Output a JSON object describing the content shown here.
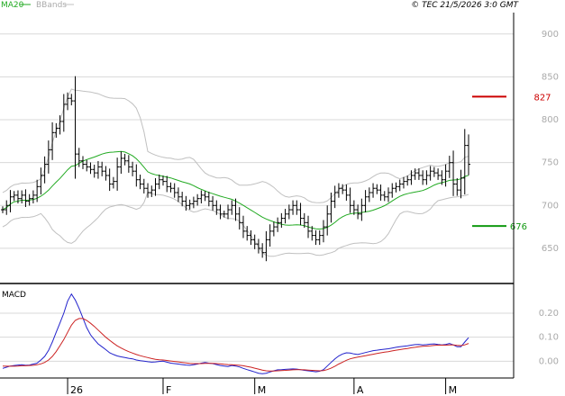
{
  "header": {
    "legend_ma": "MA20",
    "legend_bb": "BBands",
    "copyright": "© TEC 21/5/2026 3:0 GMT"
  },
  "colors": {
    "ma": "#22aa22",
    "bb": "#c0c0c0",
    "candle": "#000000",
    "macd": "#2222cc",
    "signal": "#cc2222",
    "resistance": "#cc0000",
    "support": "#119911",
    "grid": "#d8d8d8",
    "axis_text": "#aaaaaa"
  },
  "chart_data": [
    {
      "type": "candlestick",
      "panel": "price",
      "ylim": [
        610,
        925
      ],
      "yticks": [
        650,
        700,
        750,
        800,
        850,
        900
      ],
      "xticks": [
        {
          "label": "26",
          "index": 17
        },
        {
          "label": "F",
          "index": 42
        },
        {
          "label": "M",
          "index": 66
        },
        {
          "label": "A",
          "index": 92
        },
        {
          "label": "M",
          "index": 116
        }
      ],
      "levels": [
        {
          "name": "resistance",
          "value": 827,
          "label": "827"
        },
        {
          "name": "support",
          "value": 676,
          "label": "676"
        }
      ],
      "close": [
        695,
        700,
        710,
        712,
        708,
        712,
        705,
        708,
        712,
        722,
        735,
        748,
        765,
        785,
        790,
        798,
        818,
        825,
        822,
        760,
        752,
        748,
        745,
        742,
        738,
        745,
        740,
        735,
        725,
        728,
        745,
        755,
        752,
        745,
        740,
        730,
        725,
        720,
        715,
        718,
        725,
        730,
        728,
        722,
        720,
        715,
        710,
        705,
        700,
        702,
        705,
        708,
        712,
        710,
        705,
        700,
        695,
        690,
        690,
        695,
        700,
        690,
        680,
        670,
        665,
        660,
        655,
        650,
        645,
        660,
        670,
        675,
        680,
        685,
        690,
        695,
        700,
        695,
        685,
        680,
        670,
        665,
        660,
        665,
        675,
        690,
        705,
        715,
        720,
        718,
        712,
        700,
        695,
        690,
        700,
        710,
        715,
        720,
        718,
        712,
        710,
        715,
        720,
        722,
        725,
        728,
        730,
        735,
        738,
        735,
        730,
        735,
        740,
        738,
        735,
        730,
        740,
        750,
        725,
        718,
        732,
        770,
        748
      ]
    },
    {
      "type": "line",
      "panel": "macd",
      "ylim": [
        -0.07,
        0.32
      ],
      "yticks": [
        0.0,
        0.1,
        0.2
      ],
      "ytick_labels": [
        "0.00",
        "0.10",
        "0.20"
      ],
      "series": [
        {
          "name": "MACD",
          "values": [
            -0.03,
            -0.025,
            -0.02,
            -0.018,
            -0.016,
            -0.015,
            -0.017,
            -0.016,
            -0.012,
            -0.008,
            0.005,
            0.02,
            0.045,
            0.08,
            0.12,
            0.16,
            0.2,
            0.25,
            0.28,
            0.255,
            0.22,
            0.18,
            0.14,
            0.11,
            0.09,
            0.072,
            0.06,
            0.048,
            0.035,
            0.028,
            0.022,
            0.018,
            0.015,
            0.012,
            0.01,
            0.005,
            0.002,
            0.0,
            -0.002,
            -0.004,
            -0.003,
            -0.001,
            0.0,
            -0.004,
            -0.008,
            -0.01,
            -0.012,
            -0.014,
            -0.016,
            -0.017,
            -0.015,
            -0.012,
            -0.008,
            -0.005,
            -0.008,
            -0.01,
            -0.014,
            -0.018,
            -0.02,
            -0.022,
            -0.018,
            -0.02,
            -0.024,
            -0.03,
            -0.035,
            -0.04,
            -0.045,
            -0.05,
            -0.052,
            -0.05,
            -0.045,
            -0.04,
            -0.036,
            -0.035,
            -0.034,
            -0.033,
            -0.032,
            -0.033,
            -0.035,
            -0.038,
            -0.04,
            -0.042,
            -0.044,
            -0.042,
            -0.035,
            -0.02,
            -0.005,
            0.01,
            0.022,
            0.03,
            0.035,
            0.034,
            0.03,
            0.028,
            0.032,
            0.036,
            0.04,
            0.044,
            0.046,
            0.048,
            0.05,
            0.052,
            0.055,
            0.058,
            0.06,
            0.062,
            0.064,
            0.067,
            0.069,
            0.07,
            0.068,
            0.069,
            0.071,
            0.072,
            0.07,
            0.068,
            0.07,
            0.074,
            0.068,
            0.06,
            0.06,
            0.08,
            0.098
          ]
        },
        {
          "name": "Signal",
          "values": [
            -0.02,
            -0.021,
            -0.021,
            -0.021,
            -0.02,
            -0.019,
            -0.019,
            -0.018,
            -0.017,
            -0.015,
            -0.011,
            -0.005,
            0.005,
            0.02,
            0.04,
            0.065,
            0.09,
            0.12,
            0.15,
            0.17,
            0.178,
            0.178,
            0.17,
            0.158,
            0.145,
            0.13,
            0.115,
            0.1,
            0.087,
            0.075,
            0.064,
            0.055,
            0.047,
            0.04,
            0.034,
            0.028,
            0.023,
            0.019,
            0.015,
            0.011,
            0.008,
            0.006,
            0.005,
            0.003,
            0.001,
            -0.001,
            -0.003,
            -0.005,
            -0.007,
            -0.009,
            -0.01,
            -0.01,
            -0.01,
            -0.009,
            -0.009,
            -0.009,
            -0.01,
            -0.011,
            -0.013,
            -0.014,
            -0.015,
            -0.016,
            -0.017,
            -0.019,
            -0.022,
            -0.025,
            -0.029,
            -0.033,
            -0.037,
            -0.04,
            -0.041,
            -0.041,
            -0.04,
            -0.039,
            -0.038,
            -0.037,
            -0.036,
            -0.035,
            -0.035,
            -0.036,
            -0.037,
            -0.038,
            -0.039,
            -0.04,
            -0.039,
            -0.035,
            -0.029,
            -0.021,
            -0.012,
            -0.004,
            0.004,
            0.01,
            0.014,
            0.017,
            0.02,
            0.023,
            0.026,
            0.029,
            0.032,
            0.035,
            0.038,
            0.04,
            0.043,
            0.046,
            0.048,
            0.051,
            0.053,
            0.056,
            0.058,
            0.06,
            0.062,
            0.063,
            0.064,
            0.066,
            0.067,
            0.067,
            0.067,
            0.068,
            0.068,
            0.066,
            0.065,
            0.068,
            0.074
          ]
        }
      ]
    }
  ],
  "panels": {
    "price_label": "",
    "macd_label": "MACD"
  }
}
